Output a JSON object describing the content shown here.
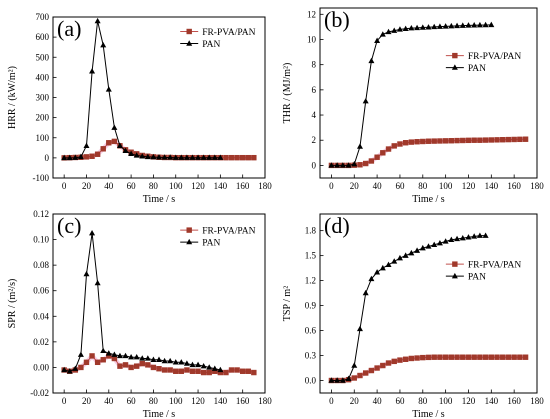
{
  "colors": {
    "fr": "#c0504d",
    "fr_marker": "#a0392b",
    "fr_glow": "#f4b8d8",
    "pan": "#000000"
  },
  "chart_data": [
    {
      "type": "line",
      "panel_label": "(a)",
      "xlabel": "Time / s",
      "ylabel": "HRR / (kW/m²)",
      "xlim": [
        -10,
        180
      ],
      "ylim": [
        -100,
        700
      ],
      "xticks": [
        0,
        20,
        40,
        60,
        80,
        100,
        120,
        140,
        160,
        180
      ],
      "yticks": [
        -100,
        0,
        100,
        200,
        300,
        400,
        500,
        600,
        700
      ],
      "ytick_labels": [
        "-100",
        "0",
        "100",
        "200",
        "300",
        "400",
        "500",
        "600",
        "700"
      ],
      "legend_position": "top-right",
      "series": [
        {
          "name": "FR-PVA/PAN",
          "marker": "square",
          "x": [
            0,
            5,
            10,
            15,
            20,
            25,
            30,
            35,
            40,
            45,
            50,
            55,
            60,
            65,
            70,
            75,
            80,
            85,
            90,
            95,
            100,
            105,
            110,
            115,
            120,
            125,
            130,
            135,
            140,
            145,
            150,
            155,
            160,
            165,
            170
          ],
          "y": [
            0,
            1,
            2,
            3,
            5,
            8,
            18,
            45,
            75,
            82,
            60,
            40,
            28,
            20,
            12,
            8,
            5,
            3,
            2,
            2,
            1,
            1,
            1,
            1,
            1,
            1,
            1,
            1,
            1,
            1,
            1,
            1,
            1,
            1,
            1
          ]
        },
        {
          "name": "PAN",
          "marker": "triangle",
          "x": [
            0,
            5,
            10,
            15,
            20,
            25,
            30,
            35,
            40,
            45,
            50,
            55,
            60,
            65,
            70,
            75,
            80,
            85,
            90,
            95,
            100,
            105,
            110,
            115,
            120,
            125,
            130,
            135,
            140
          ],
          "y": [
            0,
            0,
            1,
            5,
            60,
            430,
            680,
            560,
            340,
            150,
            60,
            35,
            20,
            12,
            8,
            5,
            4,
            3,
            2,
            2,
            1,
            1,
            1,
            1,
            1,
            1,
            1,
            1,
            1
          ]
        }
      ]
    },
    {
      "type": "line",
      "panel_label": "(b)",
      "xlabel": "Time / s",
      "ylabel": "THR / (MJ/m²)",
      "xlim": [
        -10,
        180
      ],
      "ylim": [
        -1,
        12.5
      ],
      "xticks": [
        0,
        20,
        40,
        60,
        80,
        100,
        120,
        140,
        160,
        180
      ],
      "yticks": [
        0,
        2,
        4,
        6,
        8,
        10,
        12
      ],
      "ytick_labels": [
        "0",
        "2",
        "4",
        "6",
        "8",
        "10",
        "12"
      ],
      "legend_position": "center-right",
      "series": [
        {
          "name": "FR-PVA/PAN",
          "marker": "square",
          "x": [
            0,
            5,
            10,
            15,
            20,
            25,
            30,
            35,
            40,
            45,
            50,
            55,
            60,
            65,
            70,
            75,
            80,
            85,
            90,
            95,
            100,
            105,
            110,
            115,
            120,
            125,
            130,
            135,
            140,
            145,
            150,
            155,
            160,
            165,
            170
          ],
          "y": [
            0,
            0,
            0,
            0,
            0.02,
            0.05,
            0.15,
            0.35,
            0.65,
            1.0,
            1.3,
            1.55,
            1.7,
            1.8,
            1.85,
            1.88,
            1.9,
            1.92,
            1.93,
            1.94,
            1.95,
            1.96,
            1.97,
            1.98,
            1.99,
            2.0,
            2.0,
            2.01,
            2.02,
            2.03,
            2.04,
            2.05,
            2.06,
            2.07,
            2.08
          ]
        },
        {
          "name": "PAN",
          "marker": "triangle",
          "x": [
            0,
            5,
            10,
            15,
            20,
            25,
            30,
            35,
            40,
            45,
            50,
            55,
            60,
            65,
            70,
            75,
            80,
            85,
            90,
            95,
            100,
            105,
            110,
            115,
            120,
            125,
            130,
            135,
            140
          ],
          "y": [
            0,
            0,
            0,
            0,
            0.1,
            1.5,
            5.1,
            8.3,
            9.9,
            10.4,
            10.6,
            10.7,
            10.8,
            10.85,
            10.9,
            10.92,
            10.95,
            10.97,
            11.0,
            11.02,
            11.04,
            11.06,
            11.08,
            11.1,
            11.12,
            11.13,
            11.14,
            11.15,
            11.16
          ]
        }
      ]
    },
    {
      "type": "line",
      "panel_label": "(c)",
      "xlabel": "Time / s",
      "ylabel": "SPR / (m²/s)",
      "xlim": [
        -10,
        180
      ],
      "ylim": [
        -0.02,
        0.12
      ],
      "xticks": [
        0,
        20,
        40,
        60,
        80,
        100,
        120,
        140,
        160,
        180
      ],
      "yticks": [
        -0.02,
        0,
        0.02,
        0.04,
        0.06,
        0.08,
        0.1,
        0.12
      ],
      "ytick_labels": [
        "-0.02",
        "0.00",
        "0.02",
        "0.04",
        "0.06",
        "0.08",
        "0.10",
        "0.12"
      ],
      "legend_position": "top-right",
      "series": [
        {
          "name": "FR-PVA/PAN",
          "marker": "square",
          "x": [
            0,
            5,
            10,
            15,
            20,
            25,
            30,
            35,
            40,
            45,
            50,
            55,
            60,
            65,
            70,
            75,
            80,
            85,
            90,
            95,
            100,
            105,
            110,
            115,
            120,
            125,
            130,
            135,
            140,
            145,
            150,
            155,
            160,
            165,
            170
          ],
          "y": [
            -0.002,
            -0.003,
            -0.002,
            0.0,
            0.004,
            0.009,
            0.004,
            0.006,
            0.009,
            0.007,
            0.001,
            0.002,
            0.0,
            0.001,
            0.003,
            0.002,
            0.0,
            -0.001,
            -0.002,
            -0.002,
            -0.003,
            -0.003,
            -0.002,
            -0.003,
            -0.003,
            -0.004,
            -0.004,
            -0.003,
            -0.004,
            -0.004,
            -0.002,
            -0.002,
            -0.003,
            -0.003,
            -0.004
          ]
        },
        {
          "name": "PAN",
          "marker": "triangle",
          "x": [
            0,
            5,
            10,
            15,
            20,
            25,
            30,
            35,
            40,
            45,
            50,
            55,
            60,
            65,
            70,
            75,
            80,
            85,
            90,
            95,
            100,
            105,
            110,
            115,
            120,
            125,
            130,
            135,
            140
          ],
          "y": [
            -0.002,
            -0.003,
            -0.001,
            0.01,
            0.073,
            0.105,
            0.066,
            0.013,
            0.011,
            0.01,
            0.009,
            0.009,
            0.008,
            0.008,
            0.007,
            0.007,
            0.006,
            0.006,
            0.005,
            0.005,
            0.004,
            0.004,
            0.003,
            0.002,
            0.002,
            0.001,
            0.0,
            -0.001,
            -0.002
          ]
        }
      ]
    },
    {
      "type": "line",
      "panel_label": "(d)",
      "xlabel": "Time / s",
      "ylabel": "TSP / m²",
      "xlim": [
        -10,
        180
      ],
      "ylim": [
        -0.15,
        2.0
      ],
      "xticks": [
        0,
        20,
        40,
        60,
        80,
        100,
        120,
        140,
        160,
        180
      ],
      "yticks": [
        0,
        0.3,
        0.6,
        0.9,
        1.2,
        1.5,
        1.8
      ],
      "ytick_labels": [
        "0.0",
        "0.3",
        "0.6",
        "0.9",
        "1.2",
        "1.5",
        "1.8"
      ],
      "legend_position": "center-right",
      "series": [
        {
          "name": "FR-PVA/PAN",
          "marker": "square",
          "x": [
            0,
            5,
            10,
            15,
            20,
            25,
            30,
            35,
            40,
            45,
            50,
            55,
            60,
            65,
            70,
            75,
            80,
            85,
            90,
            95,
            100,
            105,
            110,
            115,
            120,
            125,
            130,
            135,
            140,
            145,
            150,
            155,
            160,
            165,
            170
          ],
          "y": [
            0,
            0,
            0,
            0.01,
            0.03,
            0.06,
            0.09,
            0.12,
            0.15,
            0.18,
            0.21,
            0.23,
            0.245,
            0.255,
            0.265,
            0.27,
            0.275,
            0.278,
            0.28,
            0.28,
            0.28,
            0.28,
            0.28,
            0.28,
            0.28,
            0.28,
            0.28,
            0.28,
            0.28,
            0.28,
            0.28,
            0.28,
            0.28,
            0.28,
            0.28
          ]
        },
        {
          "name": "PAN",
          "marker": "triangle",
          "x": [
            0,
            5,
            10,
            15,
            20,
            25,
            30,
            35,
            40,
            45,
            50,
            55,
            60,
            65,
            70,
            75,
            80,
            85,
            90,
            95,
            100,
            105,
            110,
            115,
            120,
            125,
            130,
            135
          ],
          "y": [
            0,
            0,
            0,
            0.02,
            0.18,
            0.62,
            1.05,
            1.22,
            1.3,
            1.35,
            1.39,
            1.43,
            1.47,
            1.5,
            1.53,
            1.56,
            1.59,
            1.61,
            1.63,
            1.65,
            1.67,
            1.69,
            1.7,
            1.71,
            1.72,
            1.73,
            1.74,
            1.74
          ]
        }
      ]
    }
  ]
}
